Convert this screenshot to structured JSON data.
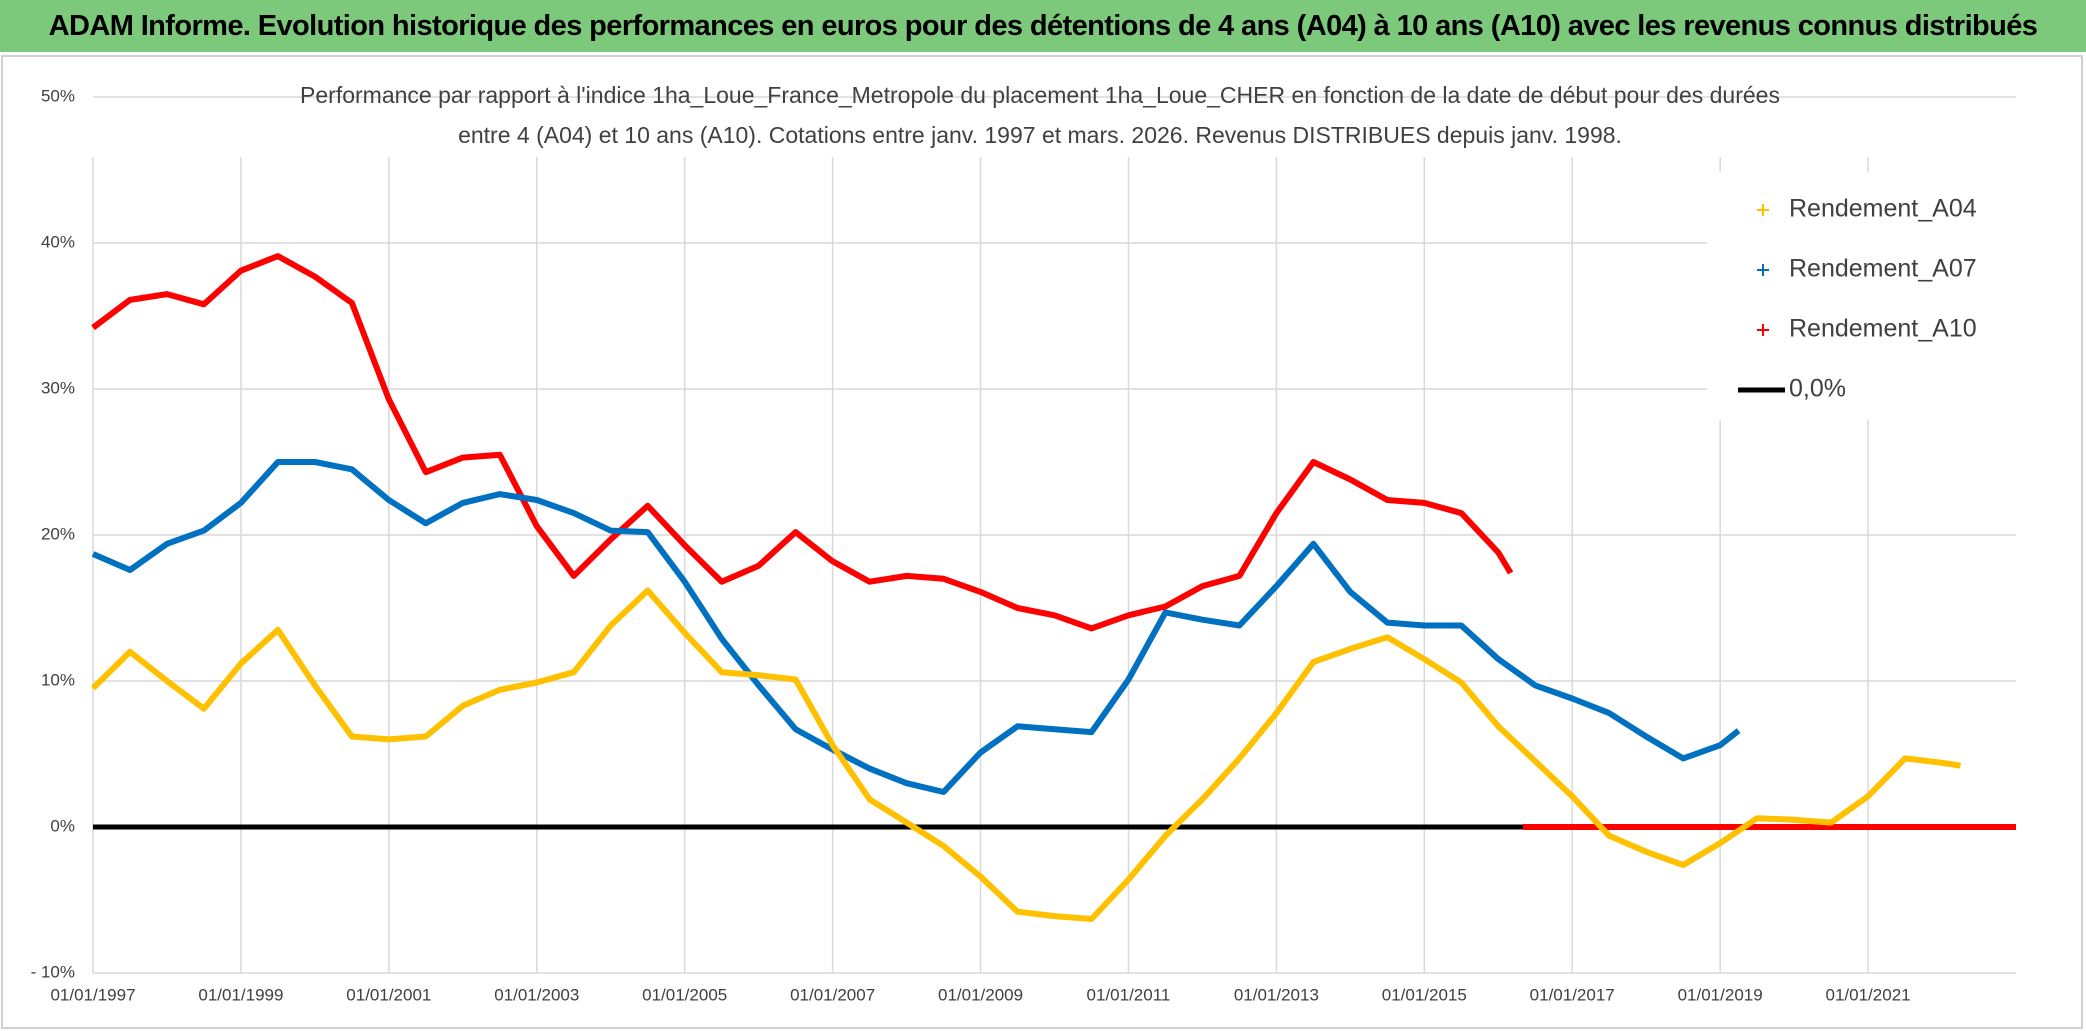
{
  "header": {
    "title": "ADAM Informe. Evolution historique des performances en euros pour des détentions de 4 ans (A04) à 10 ans (A10) avec les revenus connus distribués"
  },
  "chart_data": {
    "type": "line",
    "title": [
      "Performance par rapport à l'indice 1ha_Loue_France_Metropole  du placement 1ha_Loue_CHER en fonction de la date de début pour des durées",
      "entre 4 (A04) et 10 ans (A10). Cotations entre janv. 1997 et mars. 2026. Revenus DISTRIBUES depuis janv. 1998."
    ],
    "xlim": [
      "1997-01-01",
      "2023-01-01"
    ],
    "xticks": [
      {
        "value": "1997-01-01",
        "label": "01/01/1997"
      },
      {
        "value": "1999-01-01",
        "label": "01/01/1999"
      },
      {
        "value": "2001-01-01",
        "label": "01/01/2001"
      },
      {
        "value": "2003-01-01",
        "label": "01/01/2003"
      },
      {
        "value": "2005-01-01",
        "label": "01/01/2005"
      },
      {
        "value": "2007-01-01",
        "label": "01/01/2007"
      },
      {
        "value": "2009-01-01",
        "label": "01/01/2009"
      },
      {
        "value": "2011-01-01",
        "label": "01/01/2011"
      },
      {
        "value": "2013-01-01",
        "label": "01/01/2013"
      },
      {
        "value": "2015-01-01",
        "label": "01/01/2015"
      },
      {
        "value": "2017-01-01",
        "label": "01/01/2017"
      },
      {
        "value": "2019-01-01",
        "label": "01/01/2019"
      },
      {
        "value": "2021-01-01",
        "label": "01/01/2021"
      }
    ],
    "ylim": [
      -10,
      50
    ],
    "yticks": [
      {
        "value": -10,
        "label": "- 10%"
      },
      {
        "value": 0,
        "label": "0%"
      },
      {
        "value": 10,
        "label": "10%"
      },
      {
        "value": 20,
        "label": "20%"
      },
      {
        "value": 30,
        "label": "30%"
      },
      {
        "value": 40,
        "label": "40%"
      },
      {
        "value": 50,
        "label": "50%"
      }
    ],
    "grid": true,
    "legend": "right",
    "series": [
      {
        "name": "Rendement_A04",
        "color": "#ffc000",
        "style": "markers",
        "x": [
          "1997-01-01",
          "1997-07-01",
          "1998-01-01",
          "1998-07-01",
          "1999-01-01",
          "1999-07-01",
          "2000-01-01",
          "2000-07-01",
          "2001-01-01",
          "2001-07-01",
          "2002-01-01",
          "2002-07-01",
          "2003-01-01",
          "2003-07-01",
          "2004-01-01",
          "2004-07-01",
          "2005-01-01",
          "2005-07-01",
          "2006-01-01",
          "2006-07-01",
          "2007-01-01",
          "2007-07-01",
          "2008-01-01",
          "2008-07-01",
          "2009-01-01",
          "2009-07-01",
          "2010-01-01",
          "2010-07-01",
          "2011-01-01",
          "2011-07-01",
          "2012-01-01",
          "2012-07-01",
          "2013-01-01",
          "2013-07-01",
          "2014-01-01",
          "2014-07-01",
          "2015-01-01",
          "2015-07-01",
          "2016-01-01",
          "2016-07-01",
          "2017-01-01",
          "2017-07-01",
          "2018-01-01",
          "2018-07-01",
          "2019-01-01",
          "2019-07-01",
          "2020-01-01",
          "2020-07-01",
          "2021-01-01",
          "2021-07-01",
          "2022-01-01",
          "2022-04-01"
        ],
        "values": [
          9.5,
          12,
          10,
          8.1,
          11.2,
          13.5,
          9.7,
          6.2,
          6,
          6.2,
          8.3,
          9.4,
          9.9,
          10.6,
          13.8,
          16.2,
          13.3,
          10.6,
          10.4,
          10.1,
          5.6,
          1.9,
          0.3,
          -1.3,
          -3.4,
          -5.8,
          -6.1,
          -6.3,
          -3.6,
          -0.6,
          1.9,
          4.7,
          7.8,
          11.3,
          12.2,
          13,
          11.5,
          9.9,
          6.9,
          4.5,
          2.1,
          -0.6,
          -1.7,
          -2.6,
          -1.1,
          0.6,
          0.5,
          0.3,
          2.1,
          4.7,
          4.4,
          4.2
        ]
      },
      {
        "name": "Rendement_A07",
        "color": "#0070c0",
        "style": "markers",
        "x": [
          "1997-01-01",
          "1997-07-01",
          "1998-01-01",
          "1998-07-01",
          "1999-01-01",
          "1999-07-01",
          "2000-01-01",
          "2000-07-01",
          "2001-01-01",
          "2001-07-01",
          "2002-01-01",
          "2002-07-01",
          "2003-01-01",
          "2003-07-01",
          "2004-01-01",
          "2004-07-01",
          "2005-01-01",
          "2005-07-01",
          "2006-01-01",
          "2006-07-01",
          "2007-01-01",
          "2007-07-01",
          "2008-01-01",
          "2008-07-01",
          "2009-01-01",
          "2009-07-01",
          "2010-01-01",
          "2010-07-01",
          "2011-01-01",
          "2011-07-01",
          "2012-01-01",
          "2012-07-01",
          "2013-01-01",
          "2013-07-01",
          "2014-01-01",
          "2014-07-01",
          "2015-01-01",
          "2015-07-01",
          "2016-01-01",
          "2016-07-01",
          "2017-01-01",
          "2017-07-01",
          "2018-01-01",
          "2018-07-01",
          "2019-01-01",
          "2019-04-01"
        ],
        "values": [
          18.7,
          17.6,
          19.4,
          20.3,
          22.2,
          25,
          25,
          24.5,
          22.4,
          20.8,
          22.2,
          22.8,
          22.4,
          21.5,
          20.3,
          20.2,
          16.8,
          12.9,
          9.7,
          6.7,
          5.3,
          4,
          3,
          2.4,
          5.1,
          6.9,
          6.7,
          6.5,
          10.1,
          14.7,
          14.2,
          13.8,
          16.5,
          19.4,
          16.1,
          14,
          13.8,
          13.8,
          11.5,
          9.7,
          8.8,
          7.8,
          6.2,
          4.7,
          5.6,
          6.6
        ]
      },
      {
        "name": "Rendement_A10",
        "color": "#ff0000",
        "style": "markers",
        "x": [
          "1997-01-01",
          "1997-07-01",
          "1998-01-01",
          "1998-07-01",
          "1999-01-01",
          "1999-07-01",
          "2000-01-01",
          "2000-07-01",
          "2001-01-01",
          "2001-07-01",
          "2002-01-01",
          "2002-07-01",
          "2003-01-01",
          "2003-07-01",
          "2004-01-01",
          "2004-07-01",
          "2005-01-01",
          "2005-07-01",
          "2006-01-01",
          "2006-07-01",
          "2007-01-01",
          "2007-07-01",
          "2008-01-01",
          "2008-07-01",
          "2009-01-01",
          "2009-07-01",
          "2010-01-01",
          "2010-07-01",
          "2011-01-01",
          "2011-07-01",
          "2012-01-01",
          "2012-07-01",
          "2013-01-01",
          "2013-07-01",
          "2014-01-01",
          "2014-07-01",
          "2015-01-01",
          "2015-07-01",
          "2016-01-01",
          "2016-03-01",
          "2016-04-01",
          "2016-05-01",
          "2023-01-01"
        ],
        "values": [
          34.2,
          36.1,
          36.5,
          35.8,
          38.1,
          39.1,
          37.7,
          35.9,
          29.3,
          24.3,
          25.3,
          25.5,
          20.6,
          17.2,
          19.7,
          22,
          19.3,
          16.8,
          17.9,
          20.2,
          18.2,
          16.8,
          17.2,
          17,
          16.1,
          15,
          14.5,
          13.6,
          14.5,
          15.1,
          16.5,
          17.2,
          21.5,
          25,
          23.8,
          22.4,
          22.2,
          21.5,
          18.8,
          17.4,
          null,
          0,
          0
        ]
      },
      {
        "name": "0,0%",
        "color": "#000000",
        "style": "line",
        "x": [
          "1997-01-01",
          "2023-01-01"
        ],
        "values": [
          0,
          0
        ]
      }
    ]
  }
}
